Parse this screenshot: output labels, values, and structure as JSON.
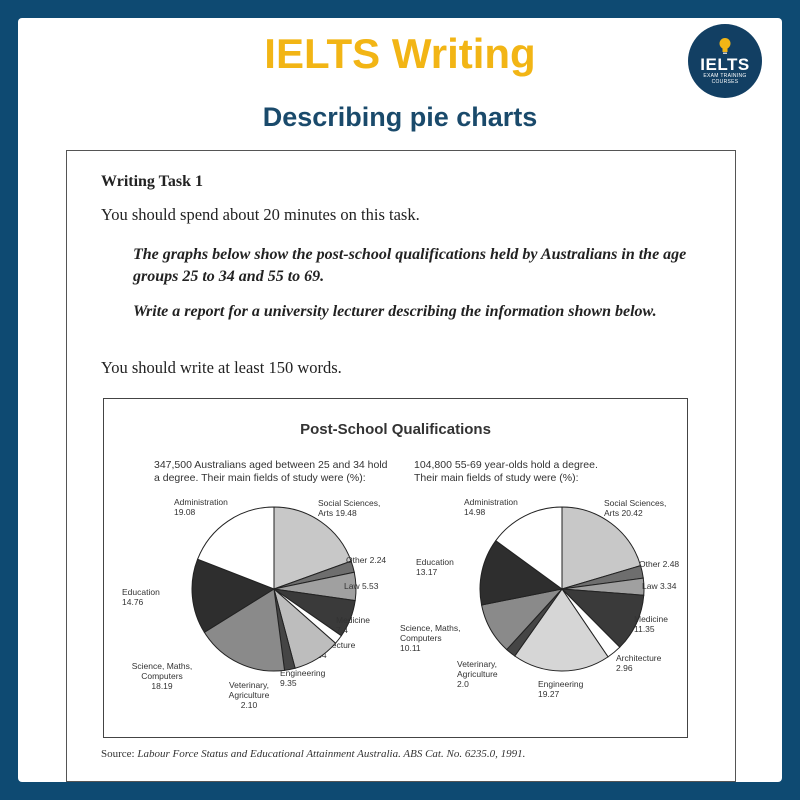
{
  "header": {
    "title": "IELTS Writing",
    "subtitle": "Describing pie charts",
    "logo_text": "IELTS",
    "logo_sub": "EXAM TRAINING COURSES"
  },
  "task": {
    "heading": "Writing Task 1",
    "time": "You should spend about 20 minutes on this task.",
    "prompt": "The graphs below show the post-school qualifications held by Australians in the age groups 25 to 34 and 55 to 69.",
    "instruction": "Write a report for a university lecturer describing the information shown below.",
    "words": "You should write at least 150 words."
  },
  "source": {
    "label": "Source:",
    "text": "Labour Force Status and Educational Attainment Australia. ABS Cat. No. 6235.0, 1991."
  },
  "chart_data": {
    "type": "pie",
    "title": "Post-School Qualifications",
    "pies": [
      {
        "caption": "347,500 Australians aged between 25 and 34 hold\na degree. Their main fields of study were (%):",
        "slices": [
          {
            "label": "Social Sciences, Arts",
            "value": 19.48,
            "color": "#c8c8c8"
          },
          {
            "label": "Other",
            "value": 2.24,
            "color": "#6e6e6e"
          },
          {
            "label": "Law",
            "value": 5.53,
            "color": "#a0a0a0"
          },
          {
            "label": "Medicine",
            "value": 7.4,
            "color": "#3a3a3a"
          },
          {
            "label": "Architecture",
            "value": 1.84,
            "color": "#ffffff"
          },
          {
            "label": "Engineering",
            "value": 9.35,
            "color": "#bdbdbd"
          },
          {
            "label": "Veterinary, Agriculture",
            "value": 2.1,
            "color": "#454545"
          },
          {
            "label": "Science, Maths, Computers",
            "value": 18.19,
            "color": "#8a8a8a"
          },
          {
            "label": "Education",
            "value": 14.76,
            "color": "#2e2e2e"
          },
          {
            "label": "Administration",
            "value": 19.08,
            "color": "#ffffff"
          }
        ]
      },
      {
        "caption": "104,800 55-69 year-olds hold a degree.\nTheir main fields of study were (%):",
        "slices": [
          {
            "label": "Social Sciences, Arts",
            "value": 20.42,
            "color": "#c8c8c8"
          },
          {
            "label": "Other",
            "value": 2.48,
            "color": "#6e6e6e"
          },
          {
            "label": "Law",
            "value": 3.34,
            "color": "#a0a0a0"
          },
          {
            "label": "Medicine",
            "value": 11.35,
            "color": "#3a3a3a"
          },
          {
            "label": "Architecture",
            "value": 2.96,
            "color": "#ffffff"
          },
          {
            "label": "Engineering",
            "value": 19.27,
            "color": "#d6d6d6"
          },
          {
            "label": "Veterinary, Agriculture",
            "value": 2.0,
            "color": "#454545"
          },
          {
            "label": "Science, Maths, Computers",
            "value": 10.11,
            "color": "#8a8a8a"
          },
          {
            "label": "Education",
            "value": 13.17,
            "color": "#2e2e2e"
          },
          {
            "label": "Administration",
            "value": 14.98,
            "color": "#ffffff"
          }
        ]
      }
    ]
  }
}
